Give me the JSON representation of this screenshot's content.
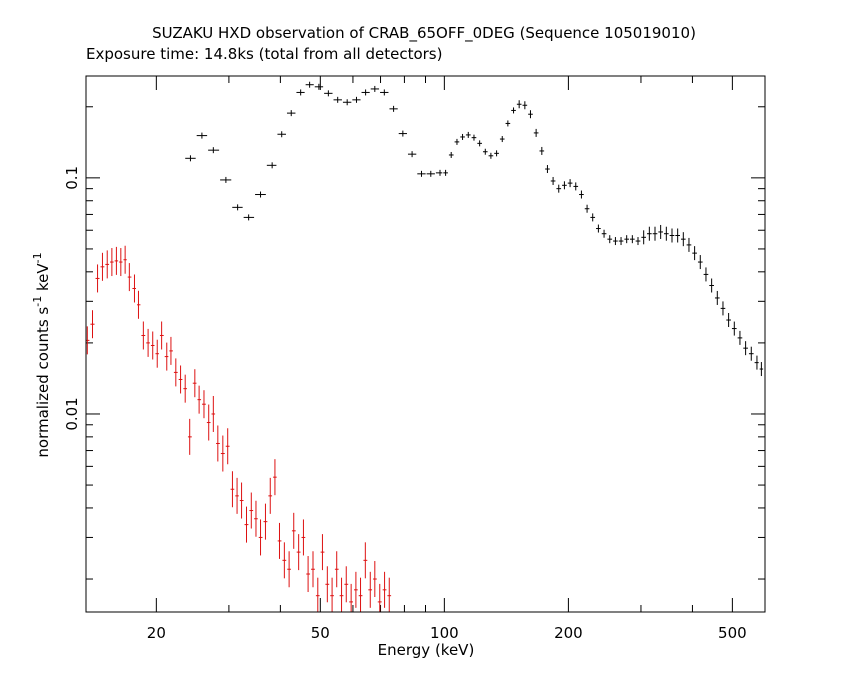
{
  "colors": {
    "background": "#ffffff",
    "axis": "#000000",
    "series_black": "#000000",
    "series_red": "#dd1111"
  },
  "chart_data": {
    "type": "scatter",
    "title": "SUZAKU HXD observation of CRAB_65OFF_0DEG (Sequence 105019010)",
    "subtitle": "Exposure time: 14.8ks (total from all detectors)",
    "xlabel": "Energy (keV)",
    "ylabel": "normalized counts s",
    "ylabel_sup1": "-1",
    "ylabel_mid": " keV",
    "ylabel_sup2": "-1",
    "xscale": "log",
    "yscale": "log",
    "xlim": [
      13.5,
      600
    ],
    "ylim": [
      0.00145,
      0.27
    ],
    "grid": false,
    "legend": "none",
    "x_ticks": [
      {
        "value": 20,
        "label": "20"
      },
      {
        "value": 50,
        "label": "50"
      },
      {
        "value": 100,
        "label": "100"
      },
      {
        "value": 200,
        "label": "200"
      },
      {
        "value": 500,
        "label": "500"
      }
    ],
    "y_ticks": [
      {
        "value": 0.01,
        "label": "0.01"
      },
      {
        "value": 0.1,
        "label": "0.1"
      }
    ],
    "series": [
      {
        "color": "#000000",
        "points": [
          [
            24.2,
            0.121
          ],
          [
            25.8,
            0.151
          ],
          [
            27.5,
            0.131
          ],
          [
            29.5,
            0.098
          ],
          [
            31.5,
            0.075
          ],
          [
            33.5,
            0.068
          ],
          [
            35.8,
            0.085
          ],
          [
            38.2,
            0.113
          ],
          [
            40.3,
            0.153
          ],
          [
            42.5,
            0.188
          ],
          [
            44.8,
            0.23
          ],
          [
            47.1,
            0.248
          ],
          [
            49.6,
            0.243
          ],
          [
            52.3,
            0.228
          ],
          [
            55.1,
            0.214
          ],
          [
            58.1,
            0.209
          ],
          [
            61.2,
            0.214
          ],
          [
            64.4,
            0.23
          ],
          [
            67.8,
            0.238
          ],
          [
            71.5,
            0.23
          ],
          [
            75.3,
            0.196
          ],
          [
            79.3,
            0.154
          ],
          [
            83.5,
            0.126
          ],
          [
            88.0,
            0.104
          ],
          [
            92.7,
            0.104
          ],
          [
            97.6,
            0.105
          ],
          [
            100.7,
            0.105
          ],
          [
            103.9,
            0.125
          ],
          [
            107.3,
            0.142
          ],
          [
            110.7,
            0.149
          ],
          [
            114.3,
            0.152
          ],
          [
            118.0,
            0.148
          ],
          [
            121.8,
            0.14
          ],
          [
            125.7,
            0.129
          ],
          [
            129.7,
            0.124
          ],
          [
            133.9,
            0.127
          ],
          [
            138.2,
            0.146
          ],
          [
            142.6,
            0.17
          ],
          [
            147.2,
            0.193
          ],
          [
            151.9,
            0.205
          ],
          [
            156.8,
            0.203
          ],
          [
            161.8,
            0.186
          ],
          [
            167.0,
            0.155
          ],
          [
            172.4,
            0.13
          ],
          [
            177.9,
            0.109
          ],
          [
            183.6,
            0.097
          ],
          [
            189.5,
            0.09
          ],
          [
            195.6,
            0.093
          ],
          [
            201.9,
            0.095
          ],
          [
            208.4,
            0.092
          ],
          [
            215.1,
            0.085
          ],
          [
            222.0,
            0.074
          ],
          [
            229.1,
            0.068
          ],
          [
            236.5,
            0.061
          ],
          [
            244.1,
            0.058
          ],
          [
            252.0,
            0.055
          ],
          [
            260.1,
            0.054
          ],
          [
            268.4,
            0.054
          ],
          [
            277.0,
            0.055
          ],
          [
            285.9,
            0.055
          ],
          [
            295.1,
            0.054
          ],
          [
            304.6,
            0.056
          ],
          [
            314.4,
            0.058
          ],
          [
            324.5,
            0.058
          ],
          [
            334.9,
            0.059
          ],
          [
            345.7,
            0.058
          ],
          [
            356.8,
            0.057
          ],
          [
            368.3,
            0.057
          ],
          [
            380.1,
            0.055
          ],
          [
            392.3,
            0.052
          ],
          [
            404.9,
            0.048
          ],
          [
            417.9,
            0.044
          ],
          [
            431.4,
            0.039
          ],
          [
            445.3,
            0.035
          ],
          [
            459.6,
            0.031
          ],
          [
            474.4,
            0.028
          ],
          [
            489.6,
            0.025
          ],
          [
            505.4,
            0.023
          ],
          [
            521.6,
            0.021
          ],
          [
            538.4,
            0.019
          ],
          [
            555.7,
            0.018
          ],
          [
            573.6,
            0.0165
          ],
          [
            588.0,
            0.0155
          ]
        ]
      },
      {
        "color": "#dd1111",
        "points": [
          [
            13.6,
            0.0205
          ],
          [
            14.0,
            0.024
          ],
          [
            14.4,
            0.0375
          ],
          [
            14.8,
            0.042
          ],
          [
            15.2,
            0.043
          ],
          [
            15.6,
            0.044
          ],
          [
            16.0,
            0.0445
          ],
          [
            16.4,
            0.044
          ],
          [
            16.8,
            0.045
          ],
          [
            17.2,
            0.038
          ],
          [
            17.7,
            0.034
          ],
          [
            18.1,
            0.029
          ],
          [
            18.6,
            0.0215
          ],
          [
            19.1,
            0.02
          ],
          [
            19.6,
            0.0195
          ],
          [
            20.1,
            0.018
          ],
          [
            20.6,
            0.0215
          ],
          [
            21.2,
            0.0175
          ],
          [
            21.7,
            0.0185
          ],
          [
            22.3,
            0.015
          ],
          [
            22.9,
            0.014
          ],
          [
            23.5,
            0.0128
          ],
          [
            24.1,
            0.008
          ],
          [
            24.8,
            0.0135
          ],
          [
            25.4,
            0.0115
          ],
          [
            26.1,
            0.011
          ],
          [
            26.8,
            0.0092
          ],
          [
            27.5,
            0.01
          ],
          [
            28.2,
            0.0075
          ],
          [
            29.0,
            0.0068
          ],
          [
            29.8,
            0.0073
          ],
          [
            30.6,
            0.0048
          ],
          [
            31.4,
            0.0045
          ],
          [
            32.2,
            0.0043
          ],
          [
            33.1,
            0.0034
          ],
          [
            34.0,
            0.0039
          ],
          [
            34.9,
            0.0036
          ],
          [
            35.8,
            0.003
          ],
          [
            36.8,
            0.0035
          ],
          [
            37.8,
            0.0045
          ],
          [
            38.8,
            0.0054
          ],
          [
            39.8,
            0.0029
          ],
          [
            40.9,
            0.0024
          ],
          [
            42.0,
            0.0022
          ],
          [
            43.1,
            0.0032
          ],
          [
            44.3,
            0.0026
          ],
          [
            45.5,
            0.003
          ],
          [
            46.7,
            0.0021
          ],
          [
            48.0,
            0.0022
          ],
          [
            49.3,
            0.0017
          ],
          [
            50.6,
            0.0026
          ],
          [
            52.0,
            0.0019
          ],
          [
            53.4,
            0.0017
          ],
          [
            54.8,
            0.0022
          ],
          [
            56.3,
            0.0017
          ],
          [
            57.8,
            0.0019
          ],
          [
            59.4,
            0.0016
          ],
          [
            61.0,
            0.0018
          ],
          [
            62.6,
            0.0017
          ],
          [
            64.3,
            0.0024
          ],
          [
            66.1,
            0.0018
          ],
          [
            67.8,
            0.002
          ],
          [
            69.7,
            0.0016
          ],
          [
            71.6,
            0.0018
          ],
          [
            73.5,
            0.0017
          ]
        ]
      }
    ]
  }
}
